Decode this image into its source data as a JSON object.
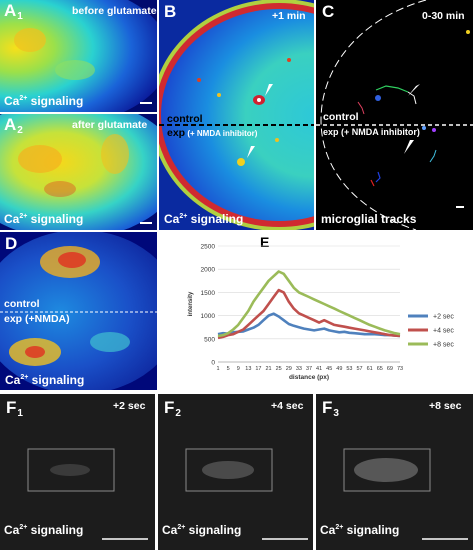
{
  "panels": {
    "a1": {
      "letter": "A",
      "index": "1",
      "note": "before glutamate",
      "caption": "Ca",
      "caption_sup": "2+",
      "caption_rest": " signaling"
    },
    "a2": {
      "letter": "A",
      "index": "2",
      "note": "after glutamate",
      "caption": "Ca",
      "caption_sup": "2+",
      "caption_rest": " signaling"
    },
    "b": {
      "letter": "B",
      "time": "+1 min",
      "control": "control",
      "exp": "exp",
      "exp_detail": " (+ NMDA inhibitor)",
      "caption": "Ca",
      "caption_sup": "2+",
      "caption_rest": " signaling"
    },
    "c": {
      "letter": "C",
      "time": "0-30 min",
      "control": "control",
      "exp": "exp (+ NMDA inhibitor)",
      "caption": "microglial tracks"
    },
    "d": {
      "letter": "D",
      "control": "control",
      "exp": "exp (+NMDA)",
      "caption": "Ca",
      "caption_sup": "2+",
      "caption_rest": " signaling"
    },
    "f1": {
      "letter": "F",
      "index": "1",
      "time": "+2 sec",
      "caption": "Ca",
      "caption_sup": "2+",
      "caption_rest": " signaling"
    },
    "f2": {
      "letter": "F",
      "index": "2",
      "time": "+4 sec",
      "caption": "Ca",
      "caption_sup": "2+",
      "caption_rest": " signaling"
    },
    "f3": {
      "letter": "F",
      "index": "3",
      "time": "+8 sec",
      "caption": "Ca",
      "caption_sup": "2+",
      "caption_rest": " signaling"
    }
  },
  "chart_data": {
    "type": "line",
    "panel_letter": "E",
    "xlabel": "distance (px)",
    "ylabel": "intensity",
    "ylim": [
      0,
      2500
    ],
    "yticks": [
      0,
      500,
      1000,
      1500,
      2000,
      2500
    ],
    "x_tick_labels": [
      "1",
      "5",
      "9",
      "13",
      "17",
      "21",
      "25",
      "29",
      "33",
      "37",
      "41",
      "45",
      "49",
      "53",
      "57",
      "61",
      "65",
      "69",
      "73"
    ],
    "legend_position": "right",
    "series": [
      {
        "name": "+2 sec",
        "color": "#4f81bd",
        "values": [
          600,
          620,
          610,
          640,
          650,
          660,
          700,
          740,
          800,
          900,
          1000,
          1040,
          980,
          900,
          820,
          780,
          750,
          720,
          700,
          680,
          700,
          720,
          680,
          660,
          640,
          650,
          630,
          620,
          610,
          600,
          600,
          600,
          590,
          580,
          580,
          570,
          560
        ]
      },
      {
        "name": "+4 sec",
        "color": "#c0504d",
        "values": [
          520,
          540,
          580,
          600,
          650,
          700,
          800,
          900,
          1000,
          1100,
          1250,
          1400,
          1550,
          1500,
          1300,
          1150,
          1050,
          1000,
          950,
          900,
          850,
          900,
          850,
          800,
          780,
          760,
          740,
          720,
          700,
          680,
          660,
          640,
          620,
          600,
          580,
          570,
          560
        ]
      },
      {
        "name": "+8 sec",
        "color": "#9bbb59",
        "values": [
          560,
          580,
          620,
          700,
          800,
          950,
          1100,
          1300,
          1450,
          1600,
          1750,
          1850,
          1950,
          1900,
          1750,
          1600,
          1500,
          1450,
          1400,
          1350,
          1300,
          1250,
          1200,
          1150,
          1100,
          1050,
          1000,
          950,
          900,
          850,
          800,
          760,
          720,
          680,
          650,
          620,
          600
        ]
      }
    ]
  }
}
